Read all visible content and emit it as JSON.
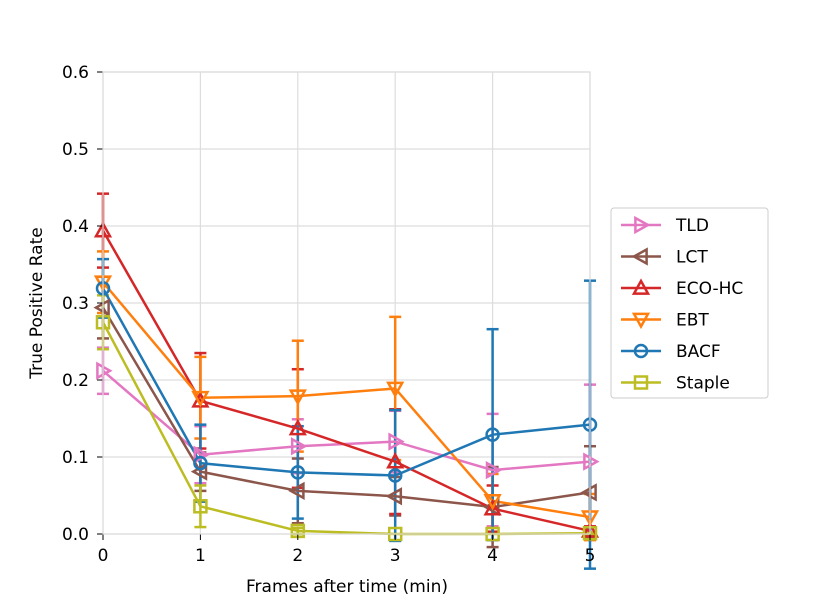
{
  "chart_data": {
    "type": "line",
    "xlabel": "Frames after time (min)",
    "ylabel": "True Positive Rate",
    "x": [
      0,
      1,
      2,
      3,
      4,
      5
    ],
    "xticks": [
      "0",
      "1",
      "2",
      "3",
      "4",
      "5"
    ],
    "yticks": [
      "0.0",
      "0.1",
      "0.2",
      "0.3",
      "0.4",
      "0.5",
      "0.6"
    ],
    "xlim": [
      0,
      5
    ],
    "ylim": [
      0,
      0.6
    ],
    "grid": true,
    "legend_position": "right",
    "series": [
      {
        "name": "TLD",
        "color": "#e377c2",
        "marker": "triangle-right",
        "values": [
          0.212,
          0.103,
          0.114,
          0.12,
          0.083,
          0.094
        ],
        "errors": [
          0.03,
          0.037,
          0.035,
          0.04,
          0.073,
          0.1
        ]
      },
      {
        "name": "LCT",
        "color": "#8c564b",
        "marker": "triangle-left",
        "values": [
          0.294,
          0.081,
          0.056,
          0.049,
          0.035,
          0.054
        ],
        "errors": [
          0.04,
          0.025,
          0.042,
          0.025,
          0.052,
          0.06
        ]
      },
      {
        "name": "ECO-HC",
        "color": "#d62728",
        "marker": "triangle-up",
        "values": [
          0.394,
          0.173,
          0.137,
          0.094,
          0.033,
          0.004
        ],
        "errors": [
          0.048,
          0.062,
          0.077,
          0.068,
          0.03,
          0.006
        ]
      },
      {
        "name": "EBT",
        "color": "#ff7f0e",
        "marker": "triangle-down",
        "values": [
          0.327,
          0.177,
          0.179,
          0.189,
          0.043,
          0.022
        ],
        "errors": [
          0.04,
          0.053,
          0.072,
          0.093,
          0.035,
          0.03
        ]
      },
      {
        "name": "BACF",
        "color": "#1f77b4",
        "marker": "circle",
        "values": [
          0.319,
          0.092,
          0.08,
          0.076,
          0.129,
          0.142
        ],
        "errors": [
          0.038,
          0.05,
          0.06,
          0.085,
          0.137,
          0.187
        ]
      },
      {
        "name": "Staple",
        "color": "#bcbd22",
        "marker": "square",
        "values": [
          0.275,
          0.036,
          0.004,
          0.0,
          0.0,
          0.001
        ],
        "errors": [
          0.035,
          0.027,
          0.004,
          0.0,
          0.0,
          0.001
        ]
      }
    ]
  }
}
